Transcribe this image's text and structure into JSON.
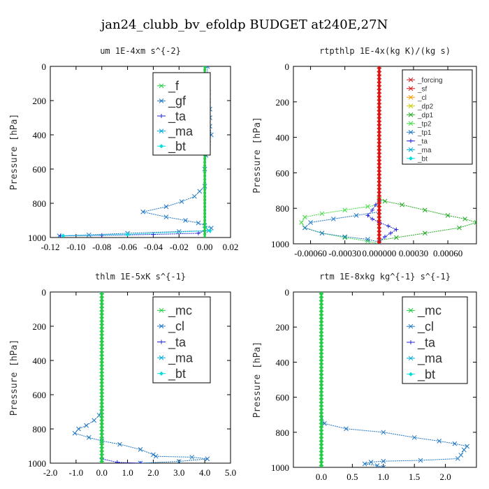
{
  "figure": {
    "title": "jan24_clubb_bv_efoldp  BUDGET at240E,27N"
  },
  "colors": {
    "f": "#22cc44",
    "gf": "#1f77c4",
    "ta": "#2222dd",
    "ma": "#00aadd",
    "bt": "#00dddd",
    "forcing": "#cc2222",
    "sf": "#dd1111",
    "cl": "#ff9900",
    "dp2": "#cccc00",
    "dp1": "#22aa22",
    "tp2": "#44dd44",
    "tp1": "#1f77c4",
    "mc": "#22cc44"
  },
  "chart_data": [
    {
      "type": "line",
      "title": "um   1E-4xm s^{-2}",
      "ylabel": "Pressure [hPa]",
      "xlim": [
        -0.12,
        0.02
      ],
      "ylim": [
        1000,
        0
      ],
      "xticks": [
        -0.12,
        -0.1,
        -0.08,
        -0.06,
        -0.04,
        -0.02,
        0.0,
        0.02
      ],
      "xticklabels": [
        "-0.12",
        "-0.10",
        "-0.08",
        "-0.06",
        "-0.04",
        "-0.02",
        "0.00",
        "0.02"
      ],
      "yticks": [
        0,
        200,
        400,
        600,
        800,
        1000
      ],
      "legend": {
        "position": "upper-right",
        "entries": [
          "_f",
          "_gf",
          "_ta",
          "_ma",
          "_bt"
        ],
        "font_size": 18
      },
      "series": [
        {
          "name": "_gf",
          "color_key": "gf",
          "marker": "x",
          "x": [
            -0.113,
            -0.09,
            -0.06,
            -0.02,
            0.003,
            0.005,
            0.0,
            -0.005,
            -0.015,
            -0.03,
            -0.048,
            -0.03,
            -0.018,
            -0.008,
            -0.004,
            0.0,
            0.0,
            0.001,
            0.002,
            0.003,
            0.003,
            0.005,
            0.004,
            0.004,
            0.004,
            0.003,
            0.003,
            0.002,
            0.002
          ],
          "y": [
            990,
            985,
            975,
            965,
            960,
            945,
            930,
            915,
            900,
            880,
            850,
            820,
            790,
            760,
            730,
            700,
            600,
            520,
            480,
            450,
            430,
            400,
            350,
            300,
            250,
            200,
            150,
            100,
            0
          ]
        },
        {
          "name": "_ta",
          "color_key": "ta",
          "marker": "+",
          "x": [
            -0.112,
            -0.08,
            -0.04,
            -0.005,
            0.0,
            0.0
          ],
          "y": [
            990,
            987,
            982,
            975,
            960,
            0
          ]
        },
        {
          "name": "_bt",
          "color_key": "bt",
          "marker": "diamond",
          "x": [
            -0.11,
            -0.06,
            0.004,
            0.0,
            0.0
          ],
          "y": [
            990,
            982,
            960,
            940,
            0
          ]
        },
        {
          "name": "_f",
          "color_key": "f",
          "marker": "dot",
          "thick": true,
          "x": [
            0.0,
            0.0
          ],
          "y": [
            0,
            1000
          ]
        }
      ]
    },
    {
      "type": "line",
      "title": "rtpthlp   1E-4x(kg K)/(kg s)",
      "ylabel": "Pressure [hPa]",
      "xlim": [
        -0.00075,
        0.00085
      ],
      "ylim": [
        1000,
        0
      ],
      "xticks": [
        -0.0006,
        -0.0003,
        0.0,
        0.0003,
        0.0006
      ],
      "xticklabels": [
        "-0.00060",
        "-0.00030",
        "0.000000",
        "0.00030",
        "0.00060"
      ],
      "yticks": [
        0,
        200,
        400,
        600,
        800,
        1000
      ],
      "legend": {
        "position": "upper-right",
        "entries": [
          "_forcing",
          "_sf",
          "_cl",
          "_dp2",
          "_dp1",
          "_tp2",
          "_tp1",
          "_ta",
          "_ma",
          "_bt"
        ],
        "font_size": 10
      },
      "series": [
        {
          "name": "_dp1",
          "color_key": "dp1",
          "marker": "x",
          "x": [
            0.0,
            5e-05,
            0.0002,
            0.0004,
            0.0006,
            0.00075,
            0.00085,
            0.0007,
            0.0004,
            0.00015,
            0.0,
            0.0
          ],
          "y": [
            750,
            760,
            780,
            810,
            840,
            860,
            880,
            910,
            940,
            965,
            980,
            1000
          ]
        },
        {
          "name": "_tp2",
          "color_key": "tp2",
          "marker": "x",
          "x": [
            0.0,
            -0.0001,
            -0.0003,
            -0.0005,
            -0.00065,
            -0.00068,
            -0.00065,
            -0.0005,
            -0.0003,
            -0.0001,
            0.0
          ],
          "y": [
            780,
            790,
            810,
            830,
            850,
            880,
            910,
            940,
            965,
            985,
            1000
          ]
        },
        {
          "name": "_tp1",
          "color_key": "tp1",
          "marker": "x",
          "x": [
            0.0,
            -0.0002,
            -0.0004,
            -0.0006,
            -0.00065,
            -0.0005,
            -0.0003,
            -0.0001,
            0.0
          ],
          "y": [
            820,
            840,
            860,
            880,
            910,
            940,
            960,
            975,
            990
          ]
        },
        {
          "name": "_ta",
          "color_key": "ta",
          "marker": "+",
          "x": [
            0.0,
            -3e-05,
            -6e-05,
            -0.0001,
            -6e-05,
            0.0,
            8e-05,
            0.00015,
            0.0001,
            5e-05,
            0.0
          ],
          "y": [
            760,
            780,
            810,
            840,
            860,
            880,
            900,
            920,
            940,
            960,
            990
          ]
        },
        {
          "name": "_sf",
          "color_key": "sf",
          "marker": "x",
          "thick": true,
          "x": [
            0.0,
            0.0
          ],
          "y": [
            0,
            1000
          ]
        }
      ]
    },
    {
      "type": "line",
      "title": "thlm   1E-5xK s^{-1}",
      "ylabel": "Pressure [hPa]",
      "xlim": [
        -2.0,
        5.0
      ],
      "ylim": [
        1000,
        0
      ],
      "xticks": [
        -2.0,
        -1.0,
        0.0,
        1.0,
        2.0,
        3.0,
        4.0,
        5.0
      ],
      "xticklabels": [
        "-2.0",
        "-1.0",
        "0.0",
        "1.0",
        "2.0",
        "3.0",
        "4.0",
        "5.0"
      ],
      "yticks": [
        0,
        200,
        400,
        600,
        800,
        1000
      ],
      "legend": {
        "position": "upper-right",
        "entries": [
          "_mc",
          "_cl",
          "_ta",
          "_ma",
          "_bt"
        ],
        "font_size": 18
      },
      "series": [
        {
          "name": "_cl",
          "color_key": "gf",
          "marker": "x",
          "x": [
            0.0,
            0.0,
            -0.1,
            -0.3,
            -0.6,
            -0.9,
            -1.05,
            -0.5,
            0.0,
            0.7,
            1.5,
            2.0,
            2.1,
            3.5,
            4.1,
            3.0,
            1.5
          ],
          "y": [
            0,
            680,
            720,
            750,
            780,
            800,
            825,
            850,
            870,
            890,
            920,
            950,
            960,
            965,
            975,
            990,
            1000
          ]
        },
        {
          "name": "_ta",
          "color_key": "ta",
          "marker": "+",
          "x": [
            0.0,
            0.0,
            0.6,
            1.5
          ],
          "y": [
            0,
            975,
            995,
            1000
          ]
        },
        {
          "name": "_mc",
          "color_key": "mc",
          "marker": "x",
          "thick": true,
          "x": [
            0.0,
            0.0
          ],
          "y": [
            0,
            1000
          ]
        }
      ]
    },
    {
      "type": "line",
      "title": "rtm   1E-8xkg kg^{-1} s^{-1}",
      "ylabel": "Pressure [hPa]",
      "xlim": [
        -0.45,
        2.5
      ],
      "ylim": [
        1000,
        0
      ],
      "xticks": [
        0.0,
        0.5,
        1.0,
        1.5,
        2.0
      ],
      "xticklabels": [
        "0.0",
        "0.5",
        "1.0",
        "1.5",
        "2.0"
      ],
      "yticks": [
        0,
        200,
        400,
        600,
        800,
        1000
      ],
      "legend": {
        "position": "upper-right",
        "entries": [
          "_mc",
          "_cl",
          "_ta",
          "_ma",
          "_bt"
        ],
        "font_size": 18
      },
      "series": [
        {
          "name": "_cl",
          "color_key": "gf",
          "marker": "x",
          "x": [
            0.0,
            0.0,
            0.05,
            0.4,
            1.0,
            1.5,
            1.9,
            2.15,
            2.35,
            2.3,
            2.25,
            2.2,
            1.6,
            1.0,
            0.8,
            0.7,
            0.9,
            1.0
          ],
          "y": [
            0,
            700,
            750,
            780,
            800,
            830,
            850,
            865,
            880,
            900,
            930,
            950,
            960,
            965,
            970,
            980,
            990,
            1000
          ]
        },
        {
          "name": "_mc",
          "color_key": "mc",
          "marker": "x",
          "thick": true,
          "x": [
            0.0,
            0.0
          ],
          "y": [
            0,
            1000
          ]
        }
      ]
    }
  ]
}
